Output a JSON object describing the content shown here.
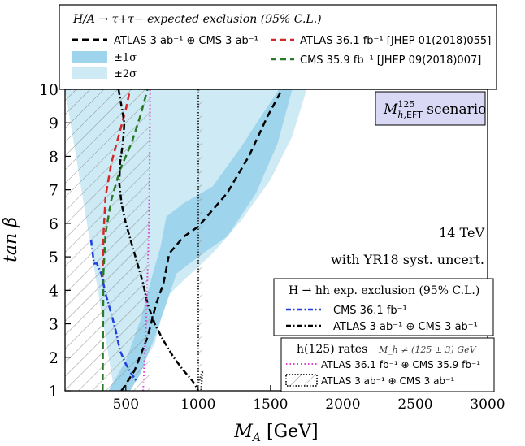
{
  "chart_data": {
    "type": "area",
    "xlabel": "M_A [GeV]",
    "ylabel": "tan β",
    "xlim": [
      80,
      3000
    ],
    "ylim": [
      1,
      10
    ],
    "xticks": [
      500,
      1000,
      1500,
      2000,
      2500,
      3000
    ],
    "yticks": [
      1,
      2,
      3,
      4,
      5,
      6,
      7,
      8,
      9,
      10
    ],
    "xtick_labels": [
      "500",
      "1000",
      "1500",
      "2000",
      "2500",
      "3000"
    ],
    "ytick_labels": [
      "1",
      "2",
      "3",
      "4",
      "5",
      "6",
      "7",
      "8",
      "9",
      "10"
    ],
    "scenario_label": "M_h,EFT^125 scenario",
    "annotation_energy": "14 TeV",
    "annotation_syst": "with YR18 syst. uncert.",
    "legend_top": {
      "title": "H/A → τ+τ− expected exclusion (95% C.L.)",
      "entries": [
        {
          "label": "ATLAS 3 ab⁻¹ ⊕ CMS 3 ab⁻¹",
          "style": "dashed",
          "color": "#000000"
        },
        {
          "label": "±1σ",
          "style": "band",
          "color": "#9fd5ec"
        },
        {
          "label": "±2σ",
          "style": "band",
          "color": "#cdeaf5"
        },
        {
          "label": "ATLAS 36.1 fb⁻¹ [JHEP 01(2018)055]",
          "style": "dashed",
          "color": "#d62728"
        },
        {
          "label": "CMS 35.9 fb⁻¹ [JHEP 09(2018)007]",
          "style": "dashed",
          "color": "#2a7a2a"
        }
      ]
    },
    "legend_hh": {
      "title": "H → hh exp. exclusion (95% C.L.)",
      "entries": [
        {
          "label": "CMS 36.1 fb⁻¹",
          "style": "dashdot",
          "color": "#1f3fe0"
        },
        {
          "label": "ATLAS 3 ab⁻¹ ⊕ CMS 3 ab⁻¹",
          "style": "dashdot",
          "color": "#000000"
        }
      ]
    },
    "legend_h125": {
      "title": "h(125) rates",
      "subtitle": "M_h ≠ (125 ± 3) GeV",
      "entries": [
        {
          "label": "ATLAS 36.1 fb⁻¹ ⊕ CMS 35.9 fb⁻¹",
          "style": "dotted",
          "color": "#e040d0"
        },
        {
          "label": "ATLAS 3 ab⁻¹ ⊕ CMS 3 ab⁻¹",
          "style": "hatched",
          "color": "#333333"
        }
      ]
    },
    "series": [
      {
        "name": "ATLAS 3 ab⁻¹ ⊕ CMS 3 ab⁻¹",
        "style": "dashed",
        "color": "#000000",
        "x": [
          470,
          560,
          650,
          710,
          760,
          800,
          900,
          1000,
          1200,
          1350,
          1480,
          1580
        ],
        "y": [
          1,
          1.6,
          2.6,
          3.6,
          4.2,
          5.1,
          5.6,
          5.9,
          6.9,
          8.0,
          9.2,
          10
        ]
      },
      {
        "name": "ATLAS 36.1 fb⁻¹ [JHEP 01(2018)055]",
        "style": "dashed",
        "color": "#d62728",
        "x": [
          340,
          345,
          360,
          400,
          450,
          500,
          530
        ],
        "y": [
          4.4,
          5.6,
          6.8,
          7.8,
          8.6,
          9.4,
          10
        ]
      },
      {
        "name": "CMS 35.9 fb⁻¹ [JHEP 09(2018)007]",
        "style": "dashed",
        "color": "#2a7a2a",
        "x": [
          340,
          345,
          360,
          400,
          460,
          540,
          600,
          650
        ],
        "y": [
          1,
          4.5,
          5.7,
          6.7,
          7.6,
          8.4,
          9.2,
          10
        ]
      },
      {
        "name": "CMS 36.1 fb⁻¹",
        "style": "dashdot",
        "color": "#1f3fe0",
        "x": [
          260,
          280,
          300,
          330,
          360,
          400,
          430,
          460,
          500,
          540,
          580
        ],
        "y": [
          5.5,
          4.8,
          4.8,
          4.5,
          3.9,
          3.3,
          2.8,
          2.2,
          1.8,
          1.5,
          1.25
        ]
      },
      {
        "name": "ATLAS 3 ab⁻¹ ⊕ CMS 3 ab⁻¹ (H→hh)",
        "style": "dashdot",
        "color": "#000000",
        "x": [
          450,
          470,
          490,
          480,
          460,
          455,
          470,
          500,
          540,
          580,
          620,
          650,
          700,
          760,
          830,
          900,
          960,
          990,
          1000
        ],
        "y": [
          10,
          9.5,
          9,
          8.4,
          7.8,
          7.2,
          6.6,
          6.0,
          5.4,
          4.8,
          4.2,
          3.6,
          3.0,
          2.5,
          2.0,
          1.6,
          1.3,
          1.1,
          1
        ]
      },
      {
        "name": "ATLAS 36.1 fb⁻¹ ⊕ CMS 35.9 fb⁻¹",
        "style": "dotted",
        "color": "#e040d0",
        "x": [
          620,
          640,
          660,
          665,
          668
        ],
        "y": [
          1,
          3,
          6,
          8,
          10
        ]
      }
    ],
    "bands": [
      {
        "name": "±2σ",
        "color": "#cdeaf5",
        "upper_x": [
          80,
          600,
          650,
          1000,
          1300,
          1600,
          1750
        ],
        "upper_y": [
          10,
          10,
          10,
          10,
          10,
          10,
          10
        ],
        "lower_x": [
          80,
          420,
          550,
          700,
          780,
          900,
          1100,
          1300,
          1500,
          1650,
          1750
        ],
        "lower_y": [
          10,
          1,
          1.4,
          2.4,
          3.8,
          4.3,
          5.1,
          6.1,
          7.3,
          8.6,
          10
        ]
      },
      {
        "name": "±1σ",
        "color": "#9fd5ec",
        "upper_x": [
          380,
          500,
          600,
          680,
          740,
          780,
          900,
          1100,
          1300,
          1450,
          1560
        ],
        "upper_y": [
          1,
          1.9,
          3.1,
          4.4,
          5.3,
          6.2,
          6.6,
          7.1,
          8.3,
          9.3,
          10
        ],
        "lower_x": [
          530,
          600,
          700,
          780,
          850,
          1000,
          1200,
          1400,
          1550,
          1650
        ],
        "lower_y": [
          1,
          1.5,
          2.6,
          3.6,
          4.5,
          5.0,
          5.6,
          6.9,
          8.4,
          10
        ]
      }
    ],
    "hatched_regions": [
      {
        "name": "ATLAS 36.1 fb⁻¹ ⊕ CMS 35.9 fb⁻¹ (h125 rates)",
        "x": [
          80,
          668,
          668,
          80
        ],
        "y": [
          10,
          10,
          1,
          1
        ]
      },
      {
        "name": "ATLAS 3 ab⁻¹ ⊕ CMS 3 ab⁻¹ (h125 rates)",
        "x": [
          668,
          1000,
          1000,
          1030,
          1030,
          668
        ],
        "y": [
          1,
          1,
          10,
          10,
          1,
          1
        ]
      }
    ]
  }
}
